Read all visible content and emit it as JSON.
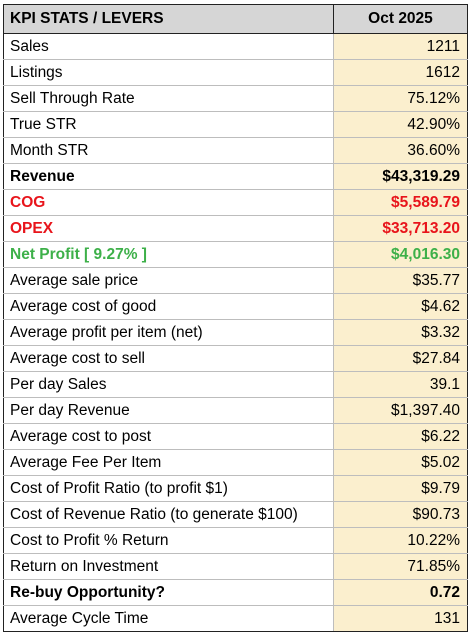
{
  "header": {
    "col1": "KPI STATS / LEVERS",
    "col2": "Oct 2025"
  },
  "colors": {
    "header_bg": "#d6d6d6",
    "value_bg": "#fbefce",
    "red": "#e8141b",
    "green": "#3db049"
  },
  "rows": [
    {
      "label": "Sales",
      "value": "1211",
      "style": "normal"
    },
    {
      "label": "Listings",
      "value": "1612",
      "style": "normal"
    },
    {
      "label": "Sell Through Rate",
      "value": "75.12%",
      "style": "normal"
    },
    {
      "label": "True STR",
      "value": "42.90%",
      "style": "normal"
    },
    {
      "label": "Month STR",
      "value": "36.60%",
      "style": "normal"
    },
    {
      "label": "Revenue",
      "value": "$43,319.29",
      "style": "bold"
    },
    {
      "label": "COG",
      "value": "$5,589.79",
      "style": "red"
    },
    {
      "label": "OPEX",
      "value": "$33,713.20",
      "style": "red"
    },
    {
      "label": "Net Profit [ 9.27% ]",
      "value": "$4,016.30",
      "style": "green"
    },
    {
      "label": "Average sale price",
      "value": "$35.77",
      "style": "normal"
    },
    {
      "label": "Average cost of good",
      "value": "$4.62",
      "style": "normal"
    },
    {
      "label": "Average profit per item (net)",
      "value": "$3.32",
      "style": "normal"
    },
    {
      "label": "Average cost to sell",
      "value": "$27.84",
      "style": "normal"
    },
    {
      "label": "Per day Sales",
      "value": "39.1",
      "style": "normal"
    },
    {
      "label": "Per day Revenue",
      "value": "$1,397.40",
      "style": "normal"
    },
    {
      "label": "Average cost to post",
      "value": "$6.22",
      "style": "normal"
    },
    {
      "label": "Average Fee Per Item",
      "value": "$5.02",
      "style": "normal"
    },
    {
      "label": "Cost of Profit Ratio (to profit $1)",
      "value": "$9.79",
      "style": "normal"
    },
    {
      "label": "Cost of Revenue Ratio (to generate $100)",
      "value": "$90.73",
      "style": "normal"
    },
    {
      "label": "Cost to Profit % Return",
      "value": "10.22%",
      "style": "normal"
    },
    {
      "label": "Return on Investment",
      "value": "71.85%",
      "style": "normal"
    },
    {
      "label": "Re-buy Opportunity?",
      "value": "0.72",
      "style": "bold"
    },
    {
      "label": "Average Cycle Time",
      "value": "131",
      "style": "normal"
    }
  ]
}
